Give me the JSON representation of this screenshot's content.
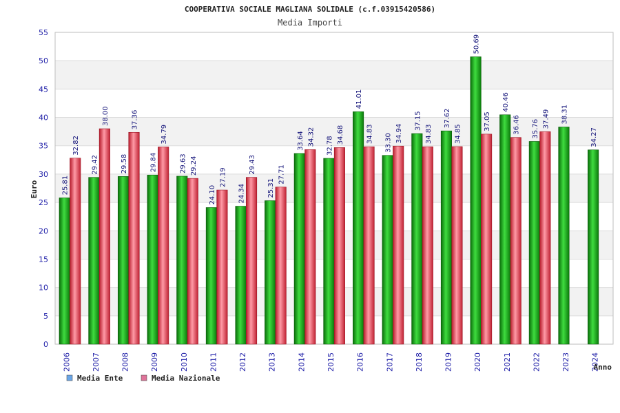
{
  "chart_data": {
    "type": "bar",
    "title": "COOPERATIVA SOCIALE MAGLIANA SOLIDALE (c.f.03915420586)",
    "subtitle": "Media Importi",
    "xlabel": "Anno",
    "ylabel": "Euro",
    "ylim": [
      0,
      55
    ],
    "ytick_step": 5,
    "grid": true,
    "legend_position": "bottom-left",
    "categories": [
      "2006",
      "2007",
      "2008",
      "2009",
      "2010",
      "2011",
      "2012",
      "2013",
      "2014",
      "2015",
      "2016",
      "2017",
      "2018",
      "2019",
      "2020",
      "2021",
      "2022",
      "2023",
      "2024"
    ],
    "series": [
      {
        "name": "Media Ente",
        "color": "#22b022",
        "legend_color": "#6aa6e8",
        "values": [
          25.81,
          29.42,
          29.58,
          29.84,
          29.63,
          24.1,
          24.34,
          25.31,
          33.64,
          32.78,
          41.01,
          33.3,
          37.15,
          37.62,
          50.69,
          40.46,
          35.76,
          38.31,
          34.27
        ],
        "labels": [
          "25.81",
          "29.42",
          "29.58",
          "29.84",
          "29.63",
          "24.10",
          "24.34",
          "25.31",
          "33.64",
          "32.78",
          "41.01",
          "33.30",
          "37.15",
          "37.62",
          "50.69",
          "40.46",
          "35.76",
          "38.31",
          "34.27"
        ]
      },
      {
        "name": "Media Nazionale",
        "color": "#e0485a",
        "legend_color": "#e0739a",
        "values": [
          32.82,
          38.0,
          37.36,
          34.79,
          29.24,
          27.19,
          29.43,
          27.71,
          34.32,
          34.68,
          34.83,
          34.94,
          34.83,
          34.85,
          37.05,
          36.46,
          37.49,
          null,
          null
        ],
        "labels": [
          "32.82",
          "38.00",
          "37.36",
          "34.79",
          "29.24",
          "27.19",
          "29.43",
          "27.71",
          "34.32",
          "34.68",
          "34.83",
          "34.94",
          "34.83",
          "34.85",
          "37.05",
          "36.46",
          "37.49",
          null,
          null
        ]
      }
    ]
  }
}
